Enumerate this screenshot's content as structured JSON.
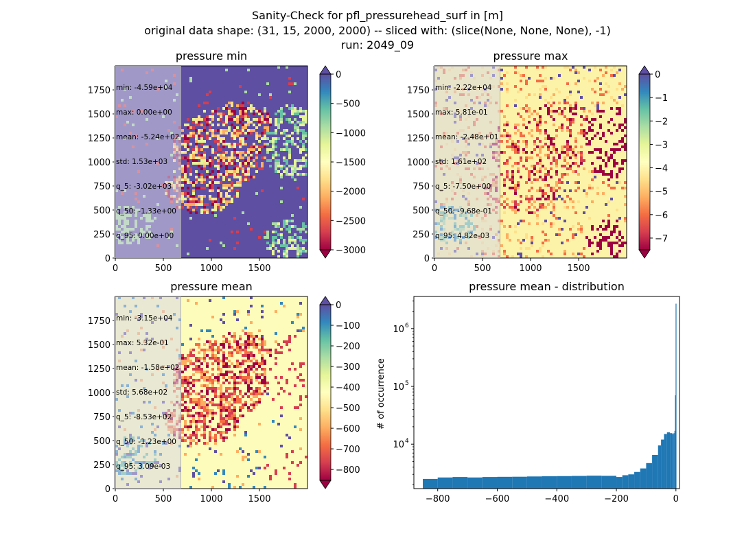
{
  "suptitle": {
    "line1": "Sanity-Check for pfl_pressurehead_surf in [m]",
    "line2": "original data shape: (31, 15, 2000, 2000) -- sliced with: (slice(None, None, None), -1)",
    "line3": "run: 2049_09"
  },
  "panels": [
    {
      "title": "pressure min",
      "colormap": "Spectral",
      "clim": [
        -3000,
        0
      ],
      "base_color": "#5e4fa2",
      "colorbar_ticks": [
        "0",
        "−500",
        "−1000",
        "−1500",
        "−2000",
        "−2500",
        "−3000"
      ],
      "colorbar_tick_values": [
        0,
        -500,
        -1000,
        -1500,
        -2000,
        -2500,
        -3000
      ],
      "stats": [
        "min: -4.59e+04",
        "max: 0.00e+00",
        "mean: -5.24e+02",
        "std: 1.53e+03",
        "q_5: -3.02e+03",
        "q_50: -1.33e+00",
        "q_95: 0.00e+00"
      ]
    },
    {
      "title": "pressure max",
      "colormap": "Spectral",
      "clim": [
        -7.5,
        0
      ],
      "base_color": "#fdf3a8",
      "colorbar_ticks": [
        "0",
        "−1",
        "−2",
        "−3",
        "−4",
        "−5",
        "−6",
        "−7"
      ],
      "colorbar_tick_values": [
        0,
        -1,
        -2,
        -3,
        -4,
        -5,
        -6,
        -7
      ],
      "stats": [
        "min: -2.22e+04",
        "max: 5.81e-01",
        "mean: -2.48e+01",
        "std: 1.61e+02",
        "q_5: -7.50e+00",
        "q_50: -9.68e-01",
        "q_95: 4.82e-03"
      ]
    },
    {
      "title": "pressure mean",
      "colormap": "Spectral",
      "clim": [
        -853,
        0
      ],
      "base_color": "#fefcba",
      "colorbar_ticks": [
        "0",
        "−100",
        "−200",
        "−300",
        "−400",
        "−500",
        "−600",
        "−700",
        "−800"
      ],
      "colorbar_tick_values": [
        0,
        -100,
        -200,
        -300,
        -400,
        -500,
        -600,
        -700,
        -800
      ],
      "stats": [
        "min: -3.15e+04",
        "max: 5.32e-01",
        "mean: -1.58e+02",
        "std: 5.68e+02",
        "q_5: -8.53e+02",
        "q_50: -1.23e+00",
        "q_95: 3.09e-03"
      ]
    }
  ],
  "image_axes": {
    "xticks": [
      "0",
      "500",
      "1000",
      "1500"
    ],
    "xtick_values": [
      0,
      500,
      1000,
      1500
    ],
    "yticks": [
      "0",
      "250",
      "500",
      "750",
      "1000",
      "1250",
      "1500",
      "1750"
    ],
    "ytick_values": [
      0,
      250,
      500,
      750,
      1000,
      1250,
      1500,
      1750
    ],
    "xlim": [
      0,
      2000
    ],
    "ylim": [
      0,
      2000
    ]
  },
  "chart_data": {
    "type": "bar",
    "title": "pressure mean - distribution",
    "xlabel": "",
    "ylabel": "# of occurrence",
    "yscale": "log",
    "xlim": [
      -880,
      12
    ],
    "ylim": [
      1700,
      3600000
    ],
    "xticks": [
      "−800",
      "−600",
      "−400",
      "−200",
      "0"
    ],
    "xtick_values": [
      -800,
      -600,
      -400,
      -200,
      0
    ],
    "yticks": [
      "10",
      "10",
      "10"
    ],
    "ytick_exponents": [
      "4",
      "5",
      "6"
    ],
    "ytick_values": [
      10000,
      100000,
      1000000
    ],
    "bar_color": "#1f77b4",
    "bins": [
      {
        "x": -850,
        "v": 2500
      },
      {
        "x": -800,
        "v": 2650
      },
      {
        "x": -750,
        "v": 2700
      },
      {
        "x": -700,
        "v": 2650
      },
      {
        "x": -650,
        "v": 2700
      },
      {
        "x": -600,
        "v": 2720
      },
      {
        "x": -550,
        "v": 2730
      },
      {
        "x": -500,
        "v": 2760
      },
      {
        "x": -450,
        "v": 2780
      },
      {
        "x": -400,
        "v": 2800
      },
      {
        "x": -350,
        "v": 2820
      },
      {
        "x": -300,
        "v": 2850
      },
      {
        "x": -250,
        "v": 2830
      },
      {
        "x": -200,
        "v": 2700
      },
      {
        "x": -180,
        "v": 2900
      },
      {
        "x": -160,
        "v": 3000
      },
      {
        "x": -140,
        "v": 3300
      },
      {
        "x": -120,
        "v": 3800
      },
      {
        "x": -100,
        "v": 4700
      },
      {
        "x": -80,
        "v": 6500
      },
      {
        "x": -60,
        "v": 9500
      },
      {
        "x": -50,
        "v": 12000
      },
      {
        "x": -40,
        "v": 15000
      },
      {
        "x": -30,
        "v": 16000
      },
      {
        "x": -20,
        "v": 15500
      },
      {
        "x": -12,
        "v": 15000
      },
      {
        "x": -8,
        "v": 15500
      },
      {
        "x": -5,
        "v": 17000
      },
      {
        "x": -3,
        "v": 70000
      },
      {
        "x": -1,
        "v": 2700000
      }
    ]
  }
}
